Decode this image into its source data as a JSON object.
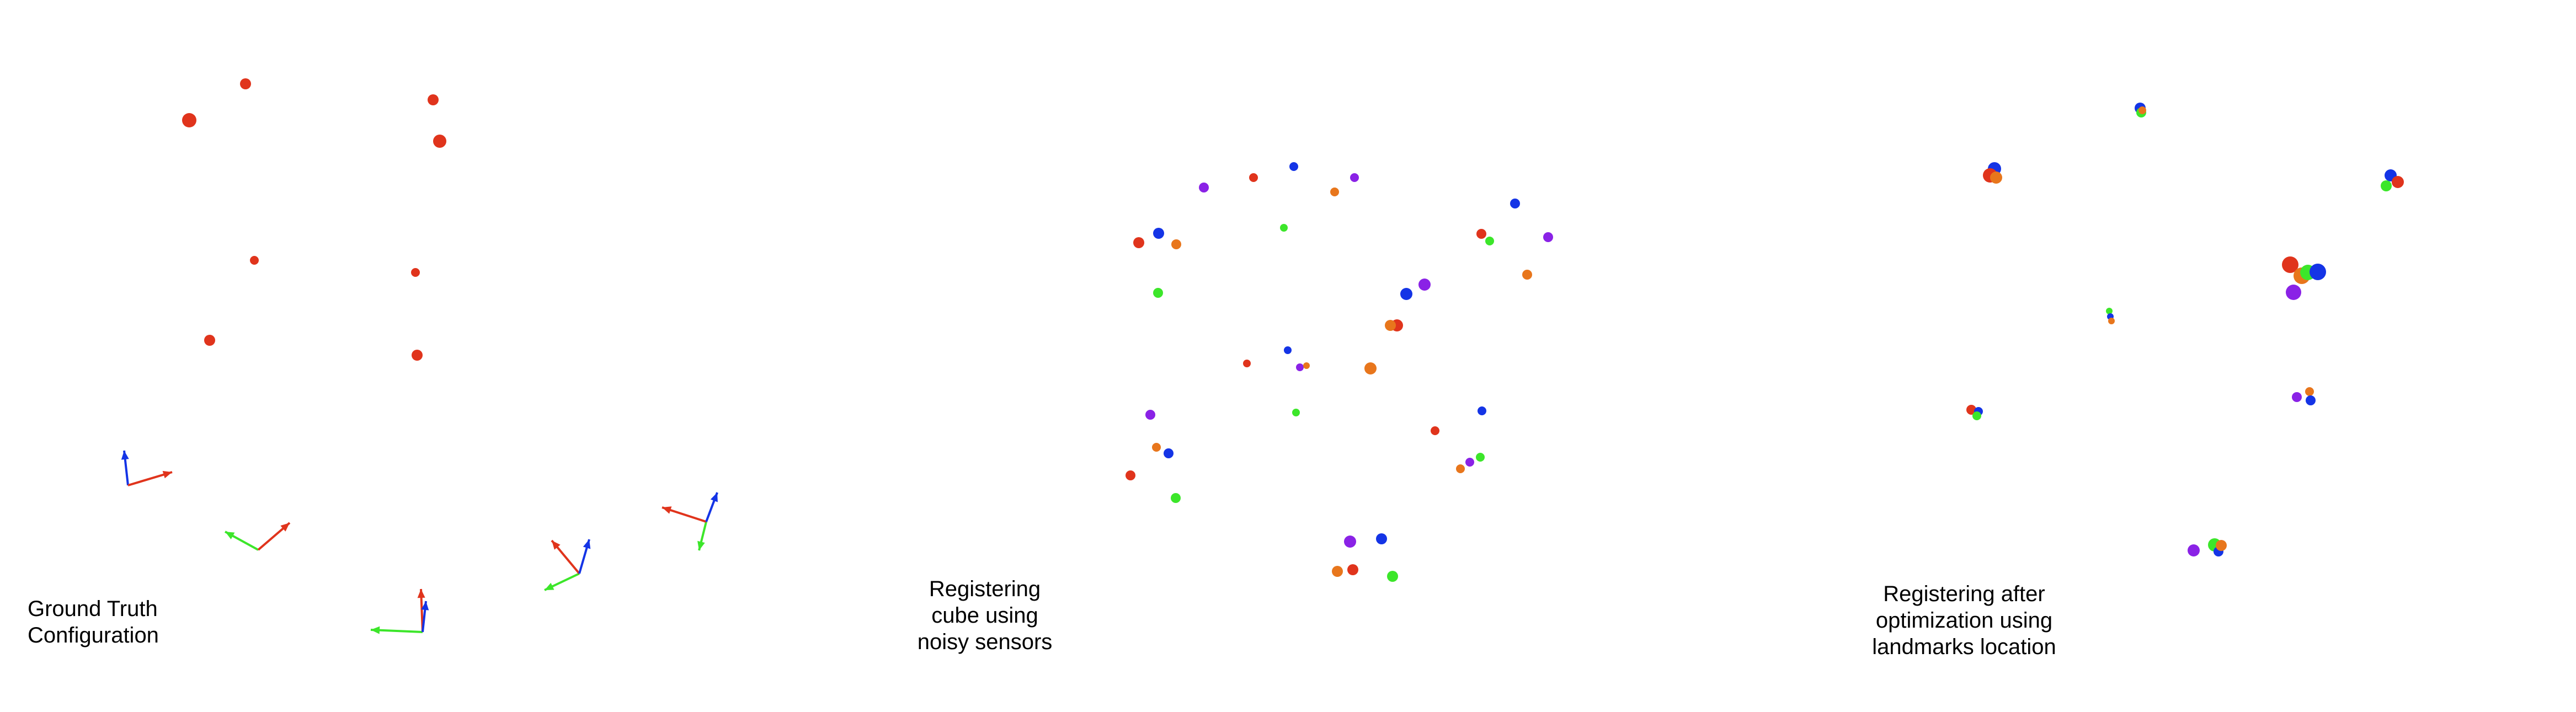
{
  "colors": {
    "red": "#e0341c",
    "blue": "#1434e6",
    "green": "#3ce62a",
    "purple": "#8a22e6",
    "orange": "#e8761c"
  },
  "panels": [
    {
      "caption": "Ground Truth\nConfiguration"
    },
    {
      "caption": "Registering\ncube using\nnoisy sensors"
    },
    {
      "caption": "Registering after\noptimization using\nlandmarks location"
    }
  ]
}
